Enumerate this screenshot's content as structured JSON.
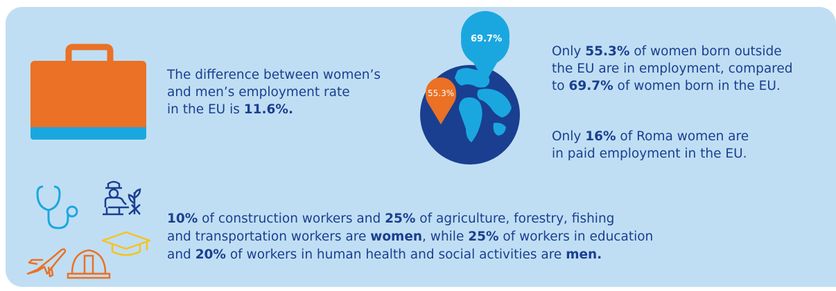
{
  "briefcase_text": {
    "line1": "The difference between women’s",
    "line2": "and men’s employment rate",
    "line3_pre": "in the EU is ",
    "line3_bold": "11.6%."
  },
  "globe": {
    "pin_eu_label": "69.7%",
    "pin_non_eu_label": "55.3%"
  },
  "right_text": {
    "p1_l1_pre": "Only ",
    "p1_l1_bold": "55.3%",
    "p1_l1_post": " of women born outside",
    "p1_l2": "the EU are in employment, compared",
    "p1_l3_pre": "to ",
    "p1_l3_bold": "69.7%",
    "p1_l3_post": " of women born in the EU.",
    "p2_l1_pre": "Only ",
    "p2_l1_bold": "16%",
    "p2_l1_post": " of Roma women are",
    "p2_l2": "in paid employment in the EU."
  },
  "bottom_text": {
    "l1_b1": "10%",
    "l1_t1": " of construction workers and ",
    "l1_b2": "25%",
    "l1_t2": " of agriculture, forestry, fishing",
    "l2_t1": "and transportation workers are ",
    "l2_b1": "women",
    "l2_t2": ", while ",
    "l2_b2": "25%",
    "l2_t3": " of workers in education",
    "l3_t1": "and ",
    "l3_b1": "20%",
    "l3_t2": " of workers in human health and social activities are ",
    "l3_b2": "men."
  },
  "colors": {
    "background": "#c0def3",
    "text": "#1a3f90",
    "orange": "#ea7125",
    "cyan": "#1aa7e0",
    "navy": "#1a3f90",
    "yellow": "#f6c21f"
  },
  "icons": [
    "briefcase-icon",
    "globe-icon",
    "map-pin-icon",
    "stethoscope-icon",
    "farmer-icon",
    "airplane-icon",
    "hard-hat-icon",
    "graduation-cap-icon"
  ]
}
